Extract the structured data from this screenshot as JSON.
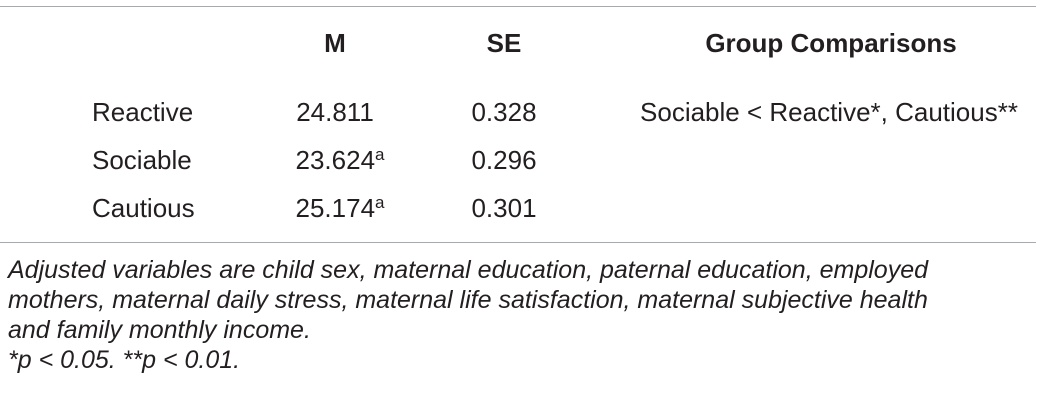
{
  "table": {
    "headers": {
      "m": "M",
      "se": "SE",
      "comparisons": "Group Comparisons"
    },
    "rows": [
      {
        "label": "Reactive",
        "m": "24.811",
        "m_sup": "",
        "se": "0.328",
        "comparisons": "Sociable < Reactive*, Cautious**"
      },
      {
        "label": "Sociable",
        "m": "23.624",
        "m_sup": "a",
        "se": "0.296",
        "comparisons": ""
      },
      {
        "label": "Cautious",
        "m": "25.174",
        "m_sup": "a",
        "se": "0.301",
        "comparisons": ""
      }
    ]
  },
  "notes": {
    "adjusted_line1": "Adjusted variables are child sex, maternal education, paternal education, employed",
    "adjusted_line2": "mothers, maternal daily stress, maternal life satisfaction, maternal subjective health",
    "adjusted_line3": "and family monthly income.",
    "significance": "*p < 0.05. **p < 0.01."
  },
  "colors": {
    "text": "#231f20",
    "rule": "#a7a9ac"
  }
}
